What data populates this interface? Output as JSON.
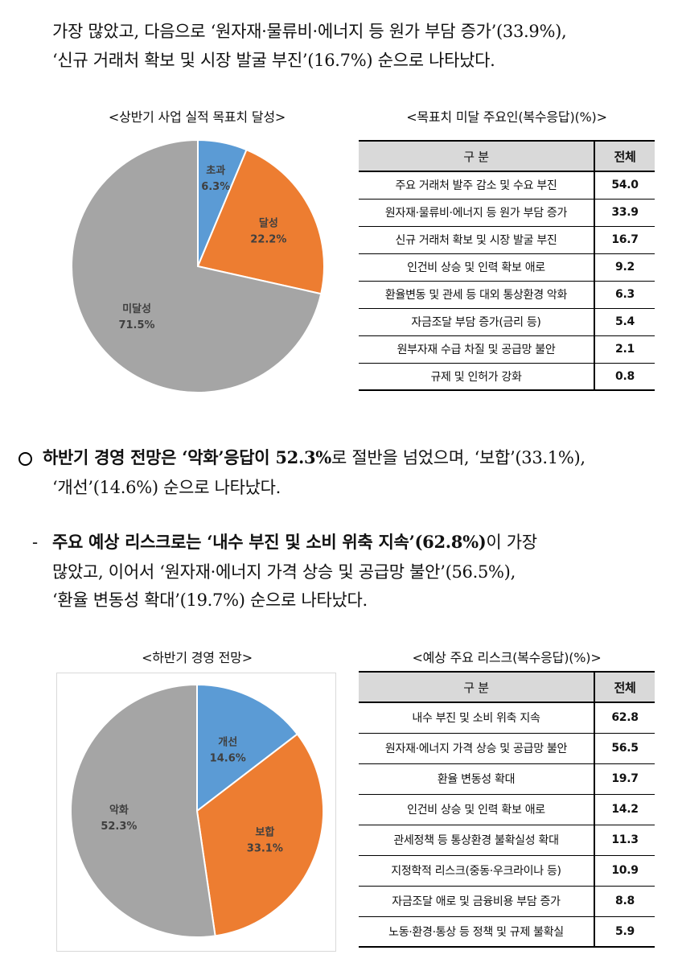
{
  "top_text": {
    "line1": "가장 많았고, 다음으로 ‘원자재·물류비·에너지 등 원가 부담 증가’(33.9%),",
    "line2": "‘신규 거래처 확보 및 시장 발굴 부진’(16.7%) 순으로 나타났다."
  },
  "section1": {
    "chart_caption": "<상반기 사업 실적 목표치 달성>",
    "table_caption": "<목표치 미달 주요인(복수응답)(%)>",
    "table_header": {
      "item": "구    분",
      "value": "전체"
    },
    "rows": [
      {
        "item": "주요 거래처 발주 감소 및 수요 부진",
        "value": "54.0"
      },
      {
        "item": "원자재·물류비·에너지 등 원가 부담 증가",
        "value": "33.9"
      },
      {
        "item": "신규 거래처 확보 및 시장 발굴 부진",
        "value": "16.7"
      },
      {
        "item": "인건비 상승 및 인력 확보 애로",
        "value": "9.2"
      },
      {
        "item": "환율변동 및 관세 등 대외 통상환경 악화",
        "value": "6.3"
      },
      {
        "item": "자금조달 부담 증가(금리 등)",
        "value": "5.4"
      },
      {
        "item": "원부자재 수급 차질 및 공급망 불안",
        "value": "2.1"
      },
      {
        "item": "규제 및 인허가 강화",
        "value": "0.8"
      }
    ]
  },
  "paragraph2": {
    "pre": "하반기 경영 전망은 ",
    "bold": "‘악화’응답이 52.3%",
    "post": "로 절반을 넘었으며, ‘보합’(33.1%),",
    "line2": "‘개선’(14.6%) 순으로 나타났다."
  },
  "paragraph3": {
    "dash": "-",
    "pre": "주요 예상 리스크로는 ",
    "bold": "‘내수 부진 및 소비 위축 지속’(62.8%)",
    "post": "이 가장",
    "line2": "많았고, 이어서 ‘원자재·에너지 가격 상승 및 공급망 불안’(56.5%),",
    "line3": "‘환율 변동성 확대’(19.7%) 순으로 나타났다."
  },
  "section2": {
    "chart_caption": "<하반기 경영 전망>",
    "table_caption": "<예상 주요 리스크(복수응답)(%)>",
    "table_header": {
      "item": "구    분",
      "value": "전체"
    },
    "rows": [
      {
        "item": "내수 부진 및 소비 위축 지속",
        "value": "62.8"
      },
      {
        "item": "원자재·에너지 가격 상승 및 공급망 불안",
        "value": "56.5"
      },
      {
        "item": "환율 변동성 확대",
        "value": "19.7"
      },
      {
        "item": "인건비 상승 및 인력 확보 애로",
        "value": "14.2"
      },
      {
        "item": "관세정책 등 통상환경 불확실성 확대",
        "value": "11.3"
      },
      {
        "item": "지정학적 리스크(중동·우크라이나 등)",
        "value": "10.9"
      },
      {
        "item": "자금조달 애로 및 금융비용 부담 증가",
        "value": "8.8"
      },
      {
        "item": "노동·환경·통상 등 정책 및 규제 불확실",
        "value": "5.9"
      }
    ]
  },
  "chart_data": [
    {
      "type": "pie",
      "slices": [
        {
          "label": "초과",
          "value": 6.3,
          "value_label": "6.3%",
          "color": "#5b9bd5"
        },
        {
          "label": "달성",
          "value": 22.2,
          "value_label": "22.2%",
          "color": "#ed7d31"
        },
        {
          "label": "미달성",
          "value": 71.5,
          "value_label": "71.5%",
          "color": "#a5a5a5"
        }
      ]
    },
    {
      "type": "pie",
      "slices": [
        {
          "label": "개선",
          "value": 14.6,
          "value_label": "14.6%",
          "color": "#5b9bd5"
        },
        {
          "label": "보합",
          "value": 33.1,
          "value_label": "33.1%",
          "color": "#ed7d31"
        },
        {
          "label": "악화",
          "value": 52.3,
          "value_label": "52.3%",
          "color": "#a5a5a5"
        }
      ]
    }
  ]
}
